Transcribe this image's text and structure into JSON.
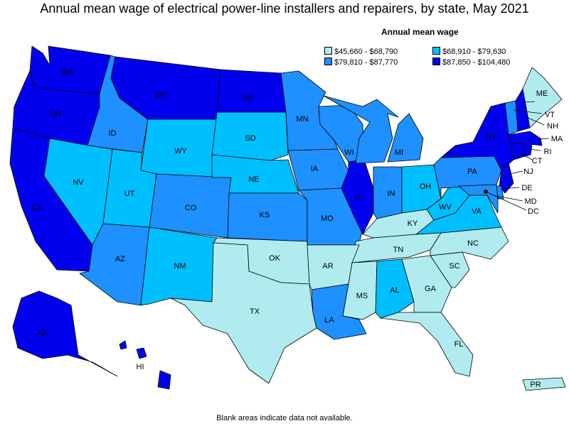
{
  "title": "Annual mean wage of electrical power-line installers and repairers, by state, May 2021",
  "legend": {
    "title": "Annual mean wage",
    "bins": [
      {
        "label": "$45,660 - $68,790",
        "color": "#b0ecef"
      },
      {
        "label": "$68,910 - $79,630",
        "color": "#00bfff"
      },
      {
        "label": "$79,810 - $87,770",
        "color": "#1e90ff"
      },
      {
        "label": "$87,850 - $104,480",
        "color": "#0000ee"
      }
    ]
  },
  "footnote": "Blank areas indicate data not available.",
  "states": {
    "WA": {
      "label": "WA",
      "bin": 3
    },
    "OR": {
      "label": "OR",
      "bin": 3
    },
    "CA": {
      "label": "CA",
      "bin": 3
    },
    "AK": {
      "label": "AK",
      "bin": 3
    },
    "HI": {
      "label": "HI",
      "bin": 3
    },
    "MT": {
      "label": "MT",
      "bin": 3
    },
    "ND": {
      "label": "ND",
      "bin": 3
    },
    "IL": {
      "label": "IL",
      "bin": 3
    },
    "NY": {
      "label": "NY",
      "bin": 3
    },
    "NH": {
      "label": "NH",
      "bin": 3
    },
    "MA": {
      "label": "MA",
      "bin": 3
    },
    "RI": {
      "label": "RI",
      "bin": 3
    },
    "CT": {
      "label": "CT",
      "bin": 3
    },
    "NJ": {
      "label": "NJ",
      "bin": 3
    },
    "ID": {
      "label": "ID",
      "bin": 2
    },
    "AZ": {
      "label": "AZ",
      "bin": 2
    },
    "CO": {
      "label": "CO",
      "bin": 2
    },
    "KS": {
      "label": "KS",
      "bin": 2
    },
    "MN": {
      "label": "MN",
      "bin": 2
    },
    "IA": {
      "label": "IA",
      "bin": 2
    },
    "MO": {
      "label": "MO",
      "bin": 2
    },
    "WI": {
      "label": "WI",
      "bin": 2
    },
    "MI": {
      "label": "MI",
      "bin": 2
    },
    "IN": {
      "label": "IN",
      "bin": 2
    },
    "PA": {
      "label": "PA",
      "bin": 2
    },
    "LA": {
      "label": "LA",
      "bin": 2
    },
    "VT": {
      "label": "VT",
      "bin": 2
    },
    "DE": {
      "label": "DE",
      "bin": 2
    },
    "MD": {
      "label": "MD",
      "bin": 2
    },
    "NV": {
      "label": "NV",
      "bin": 1
    },
    "UT": {
      "label": "UT",
      "bin": 1
    },
    "WY": {
      "label": "WY",
      "bin": 1
    },
    "NM": {
      "label": "NM",
      "bin": 1
    },
    "SD": {
      "label": "SD",
      "bin": 1
    },
    "NE": {
      "label": "NE",
      "bin": 1
    },
    "OH": {
      "label": "OH",
      "bin": 1
    },
    "WV": {
      "label": "WV",
      "bin": 1
    },
    "VA": {
      "label": "VA",
      "bin": 1
    },
    "AL": {
      "label": "AL",
      "bin": 1
    },
    "TX": {
      "label": "TX",
      "bin": 0
    },
    "OK": {
      "label": "OK",
      "bin": 0
    },
    "AR": {
      "label": "AR",
      "bin": 0
    },
    "MS": {
      "label": "MS",
      "bin": 0
    },
    "TN": {
      "label": "TN",
      "bin": 0
    },
    "KY": {
      "label": "KY",
      "bin": 0
    },
    "GA": {
      "label": "GA",
      "bin": 0
    },
    "FL": {
      "label": "FL",
      "bin": 0
    },
    "SC": {
      "label": "SC",
      "bin": 0
    },
    "NC": {
      "label": "NC",
      "bin": 0
    },
    "ME": {
      "label": "ME",
      "bin": 0
    },
    "PR": {
      "label": "PR",
      "bin": 0
    },
    "DC": {
      "label": "DC",
      "bin": null
    }
  }
}
